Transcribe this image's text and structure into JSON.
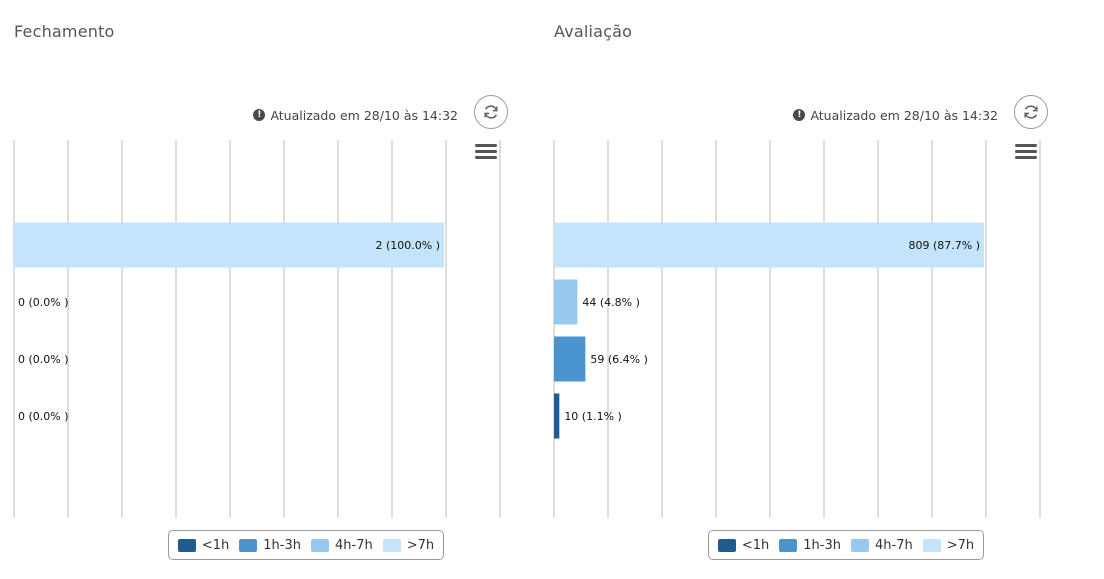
{
  "colors": {
    "lt1h": "#1f5b8f",
    "h1_3": "#4a94d0",
    "h4_7": "#96c8f0",
    "gt7h": "#c4e4fb"
  },
  "icons": {
    "info": "info-icon",
    "refresh": "refresh-icon",
    "menu": "hamburger-menu-icon"
  },
  "info_glyph": "!",
  "chart_data": [
    {
      "type": "bar",
      "orientation": "horizontal",
      "title": "Fechamento",
      "updated": "Atualizado em 28/10 às 14:32",
      "xlim": [
        0,
        2
      ],
      "grid": true,
      "legend_position": "bottom-center",
      "legend": [
        "<1h",
        "1h-3h",
        "4h-7h",
        ">7h"
      ],
      "bars": [
        {
          "category": ">7h",
          "value": 2,
          "label": "2 (100.0% )"
        },
        {
          "category": "4h-7h",
          "value": 0,
          "label": "0 (0.0% )"
        },
        {
          "category": "1h-3h",
          "value": 0,
          "label": "0 (0.0% )"
        },
        {
          "category": "<1h",
          "value": 0,
          "label": "0 (0.0% )"
        }
      ]
    },
    {
      "type": "bar",
      "orientation": "horizontal",
      "title": "Avaliação",
      "updated": "Atualizado em 28/10 às 14:32",
      "xlim": [
        0,
        809
      ],
      "grid": true,
      "legend_position": "bottom-center",
      "legend": [
        "<1h",
        "1h-3h",
        "4h-7h",
        ">7h"
      ],
      "bars": [
        {
          "category": ">7h",
          "value": 809,
          "label": "809 (87.7% )"
        },
        {
          "category": "4h-7h",
          "value": 44,
          "label": "44 (4.8% )"
        },
        {
          "category": "1h-3h",
          "value": 59,
          "label": "59 (6.4% )"
        },
        {
          "category": "<1h",
          "value": 10,
          "label": "10 (1.1% )"
        }
      ]
    }
  ]
}
